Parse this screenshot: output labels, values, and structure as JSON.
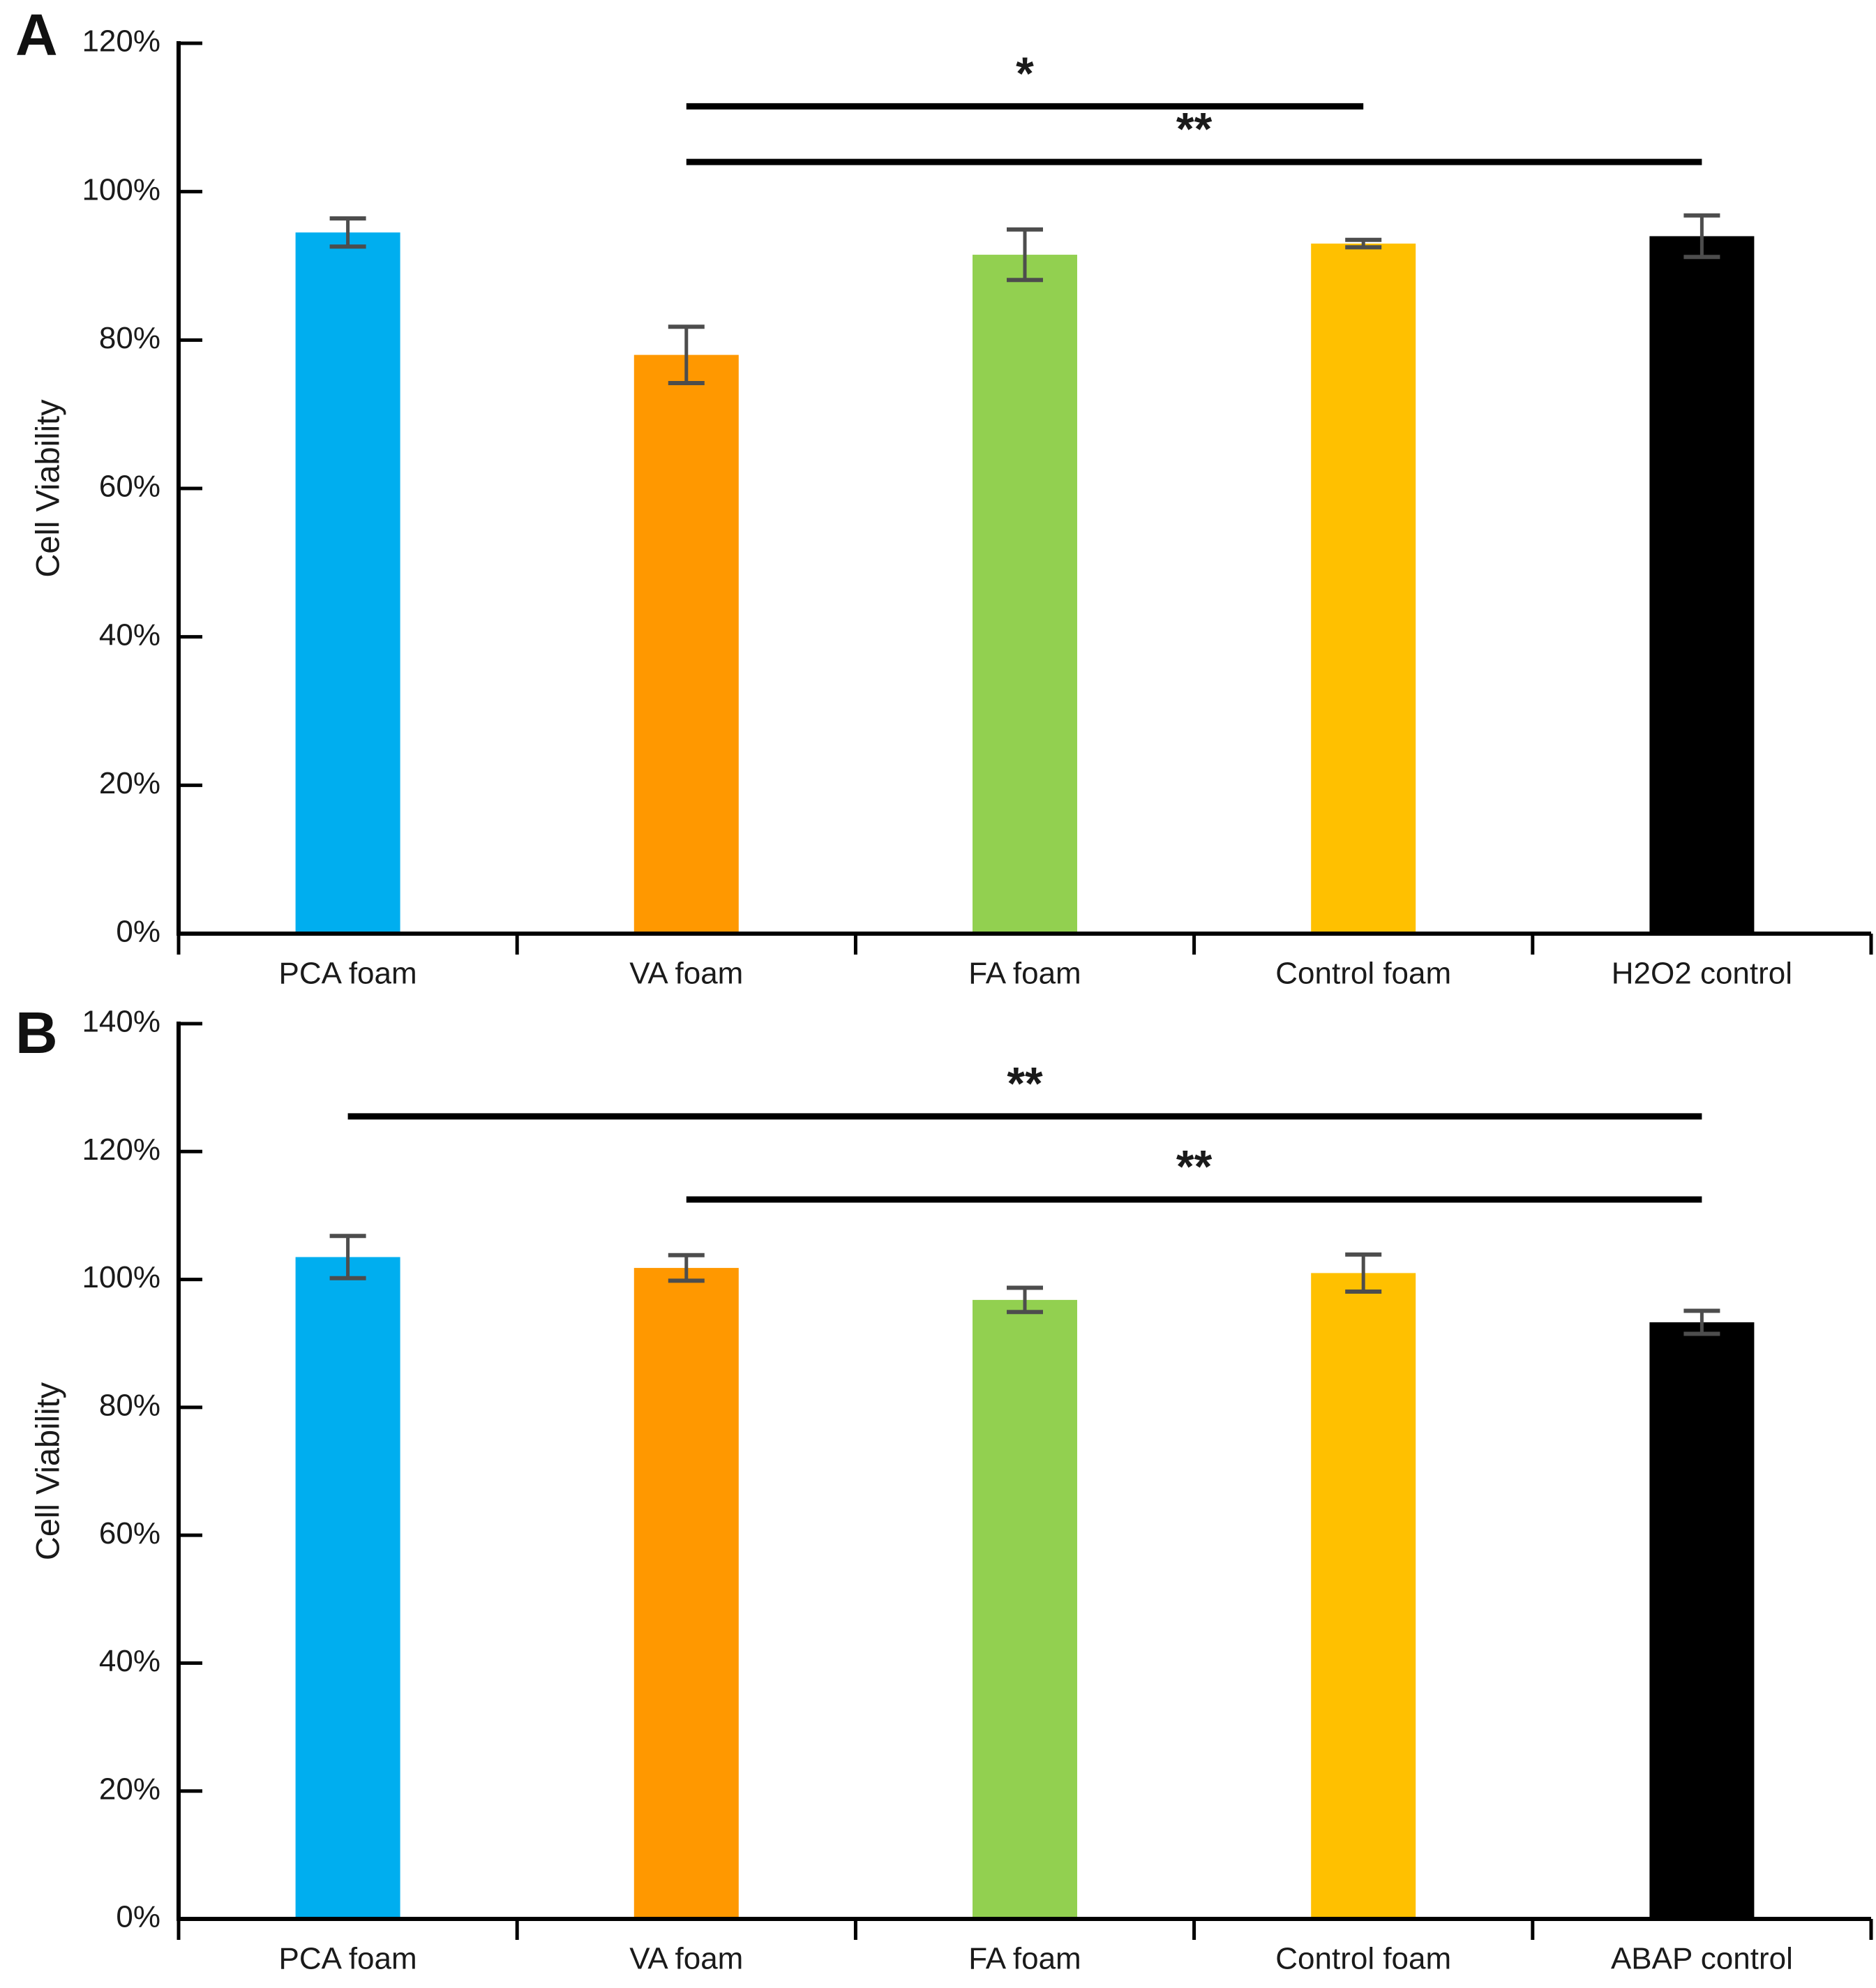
{
  "figure": {
    "panel_a_letter": "A",
    "panel_b_letter": "B"
  },
  "palette": {
    "axis_color": "#000000",
    "text_color": "#1a1a1a",
    "error_bar_color": "#4d4d4d",
    "significance_line_color": "#000000"
  },
  "chart_data": [
    {
      "panel": "A",
      "type": "bar",
      "ylabel": "Cell Viability",
      "ylim": [
        0,
        120
      ],
      "ytick_step": 20,
      "ytick_labels": [
        "0%",
        "20%",
        "40%",
        "60%",
        "80%",
        "100%",
        "120%"
      ],
      "grid": false,
      "legend": "none",
      "categories": [
        "PCA foam",
        "VA foam",
        "FA foam",
        "Control foam",
        "H2O2 control"
      ],
      "values": [
        94.5,
        78,
        91.5,
        93,
        94
      ],
      "errors": [
        1.9,
        3.8,
        3.4,
        0.5,
        2.8
      ],
      "bar_colors": [
        "#00AEEF",
        "#FF9800",
        "#92D050",
        "#FFC000",
        "#000000"
      ],
      "significance": [
        {
          "from": "VA foam",
          "to": "Control foam",
          "label": "*",
          "y_pct": 111.5
        },
        {
          "from": "VA foam",
          "to": "H2O2 control",
          "label": "**",
          "y_pct": 104
        }
      ]
    },
    {
      "panel": "B",
      "type": "bar",
      "ylabel": "Cell Viability",
      "ylim": [
        0,
        140
      ],
      "ytick_step": 20,
      "ytick_labels": [
        "0%",
        "20%",
        "40%",
        "60%",
        "80%",
        "100%",
        "120%",
        "140%"
      ],
      "grid": false,
      "legend": "none",
      "categories": [
        "PCA foam",
        "VA foam",
        "FA foam",
        "Control foam",
        "ABAP control"
      ],
      "values": [
        103.5,
        101.8,
        96.8,
        101,
        93.3
      ],
      "errors": [
        3.3,
        2.0,
        1.9,
        2.9,
        1.8
      ],
      "bar_colors": [
        "#00AEEF",
        "#FF9800",
        "#92D050",
        "#FFC000",
        "#000000"
      ],
      "significance": [
        {
          "from": "PCA foam",
          "to": "ABAP control",
          "label": "**",
          "y_pct": 125.5
        },
        {
          "from": "VA foam",
          "to": "ABAP control",
          "label": "**",
          "y_pct": 112.5
        }
      ]
    }
  ]
}
